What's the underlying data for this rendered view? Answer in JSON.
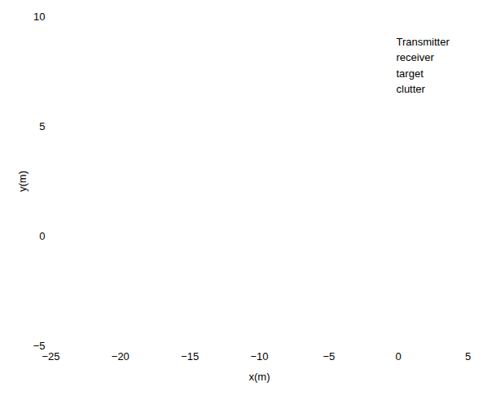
{
  "chart_data": {
    "type": "scatter",
    "x_label": "x(m)",
    "y_label": "y(m)",
    "xlim": [
      -25,
      5
    ],
    "xticks": [
      -25,
      -20,
      -15,
      -10,
      -5,
      0,
      5
    ],
    "ylim": [
      -5,
      10
    ],
    "yticks": [
      -5,
      0,
      5,
      10
    ],
    "grid": false,
    "legend": "northeast",
    "series": [
      {
        "name": "Transmitter",
        "x": [],
        "values": []
      },
      {
        "name": "receiver",
        "x": [],
        "values": []
      },
      {
        "name": "target",
        "x": [],
        "values": []
      },
      {
        "name": "clutter",
        "x": [],
        "values": []
      }
    ]
  }
}
